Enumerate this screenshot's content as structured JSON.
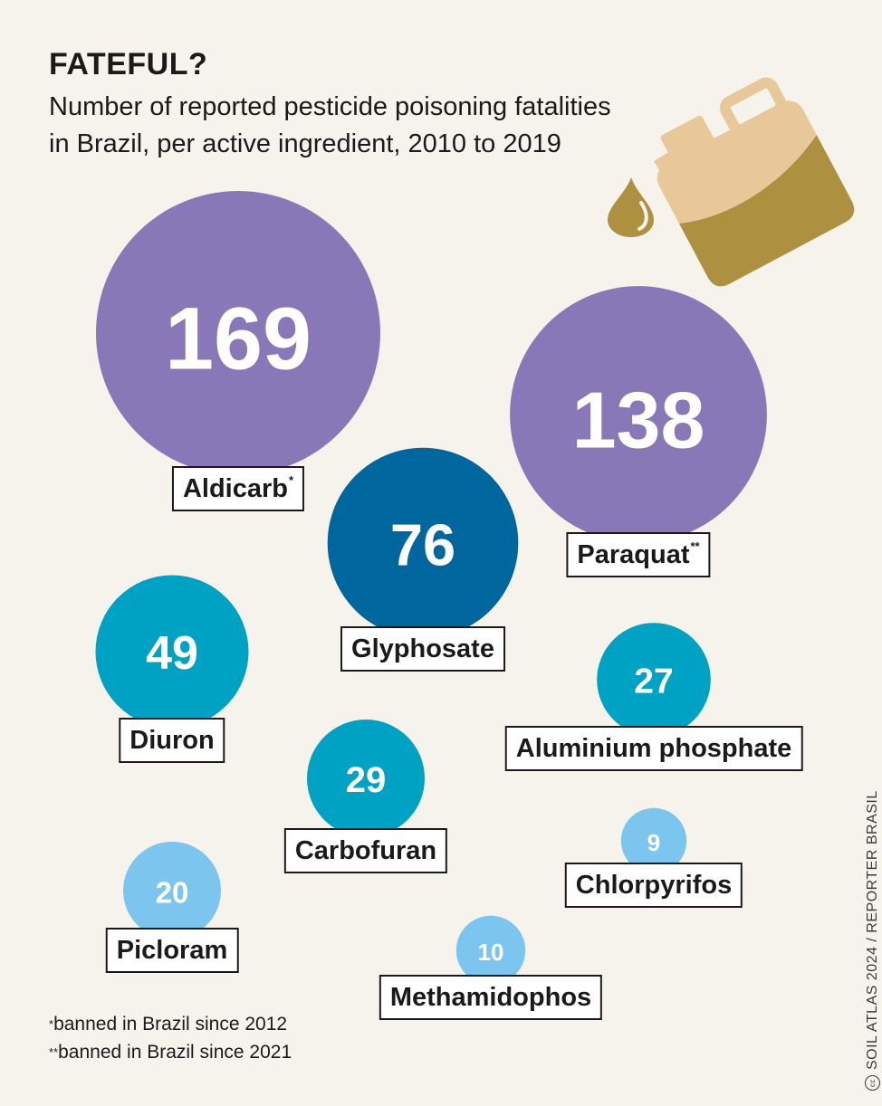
{
  "header": {
    "title": "FATEFUL?",
    "subtitle_line1": "Number of reported pesticide poisoning fatalities",
    "subtitle_line2": "in Brazil, per active ingredient, 2010 to 2019"
  },
  "chart_data": {
    "type": "bubble",
    "title": "FATEFUL?",
    "subtitle": "Number of reported pesticide poisoning fatalities in Brazil, per active ingredient, 2010 to 2019",
    "series": [
      {
        "name": "Aldicarb",
        "marker": "*",
        "value": 169,
        "color": "#8878b7"
      },
      {
        "name": "Paraquat",
        "marker": "**",
        "value": 138,
        "color": "#8878b7"
      },
      {
        "name": "Glyphosate",
        "marker": "",
        "value": 76,
        "color": "#00669e"
      },
      {
        "name": "Diuron",
        "marker": "",
        "value": 49,
        "color": "#00a2c4"
      },
      {
        "name": "Carbofuran",
        "marker": "",
        "value": 29,
        "color": "#00a2c4"
      },
      {
        "name": "Aluminium phosphate",
        "marker": "",
        "value": 27,
        "color": "#00a2c4"
      },
      {
        "name": "Picloram",
        "marker": "",
        "value": 20,
        "color": "#7cc5ee"
      },
      {
        "name": "Methamidophos",
        "marker": "",
        "value": 10,
        "color": "#7cc5ee"
      },
      {
        "name": "Chlorpyrifos",
        "marker": "",
        "value": 9,
        "color": "#7cc5ee"
      }
    ]
  },
  "footnotes": {
    "single_marker": "*",
    "single_text": "banned in Brazil since 2012",
    "double_marker": "**",
    "double_text": "banned in Brazil since 2021"
  },
  "credit": "SOIL ATLAS 2024 / REPORTER BRASIL",
  "credit_icon": "creative-commons-icon",
  "illustration": "pesticide-canister-icon"
}
